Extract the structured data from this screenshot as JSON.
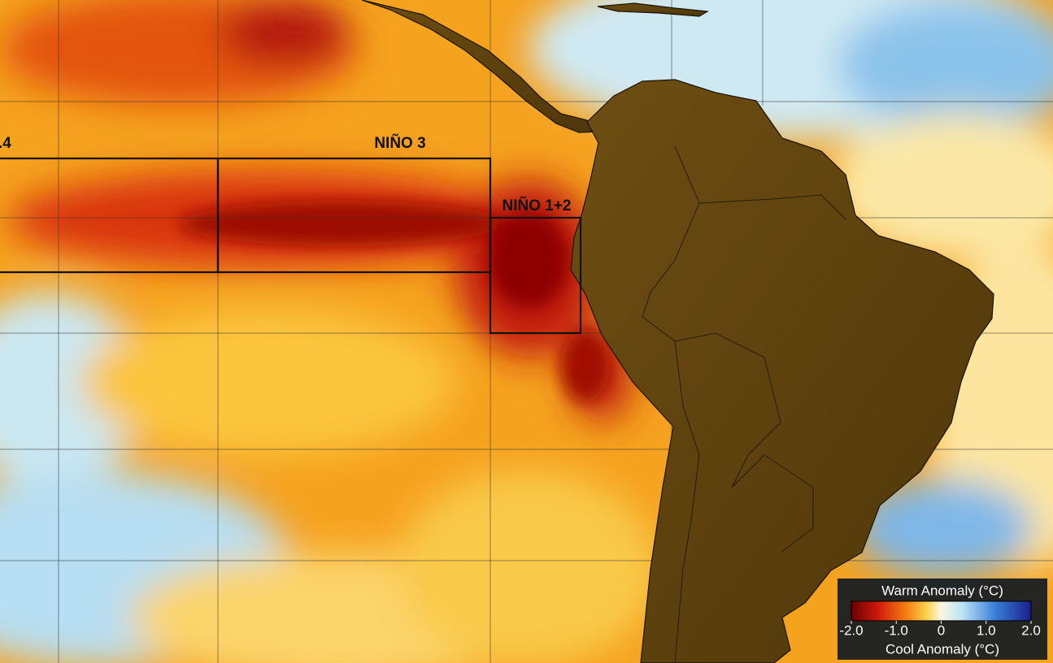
{
  "regions": [
    {
      "label": ".4"
    },
    {
      "label": "NIÑO 3"
    },
    {
      "label": "NIÑO 1+2"
    }
  ],
  "legend": {
    "title": "Warm Anomaly (°C)",
    "ticks": [
      {
        "value": -2,
        "label": "-2.0"
      },
      {
        "value": -1,
        "label": "-1.0"
      },
      0,
      {
        "value": 1,
        "label": "1.0"
      },
      {
        "value": 2,
        "label": "2.0"
      }
    ],
    "footer": "Cool Anomaly (°C)"
  }
}
